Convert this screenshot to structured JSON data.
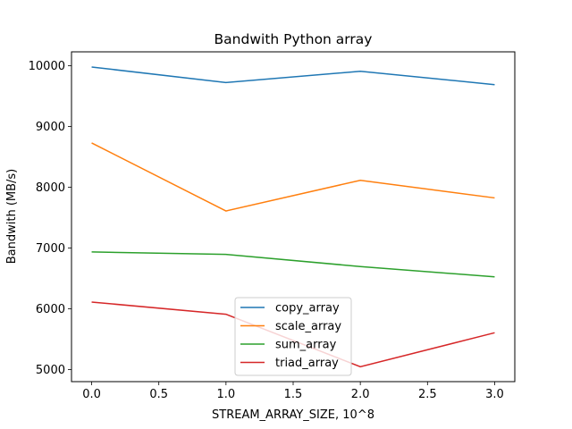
{
  "chart_data": {
    "type": "line",
    "title": "Bandwith Python array",
    "xlabel": "STREAM_ARRAY_SIZE, 10^8",
    "ylabel": "Bandwith (MB/s)",
    "x": [
      0,
      1,
      2,
      3
    ],
    "xlim": [
      -0.15,
      3.15
    ],
    "ylim": [
      4800,
      10230
    ],
    "xticks": [
      0.0,
      0.5,
      1.0,
      1.5,
      2.0,
      2.5,
      3.0
    ],
    "xtick_labels": [
      "0.0",
      "0.5",
      "1.0",
      "1.5",
      "2.0",
      "2.5",
      "3.0"
    ],
    "yticks": [
      5000,
      6000,
      7000,
      8000,
      9000,
      10000
    ],
    "ytick_labels": [
      "5000",
      "6000",
      "7000",
      "8000",
      "9000",
      "10000"
    ],
    "grid": false,
    "legend_position": "lower-center",
    "series": [
      {
        "name": "copy_array",
        "color": "#1f77b4",
        "values": [
          9980,
          9725,
          9910,
          9690
        ]
      },
      {
        "name": "scale_array",
        "color": "#ff7f0e",
        "values": [
          8730,
          7610,
          8115,
          7825
        ]
      },
      {
        "name": "sum_array",
        "color": "#2ca02c",
        "values": [
          6935,
          6895,
          6695,
          6525
        ]
      },
      {
        "name": "triad_array",
        "color": "#d62728",
        "values": [
          6110,
          5910,
          5045,
          5605
        ]
      }
    ]
  }
}
